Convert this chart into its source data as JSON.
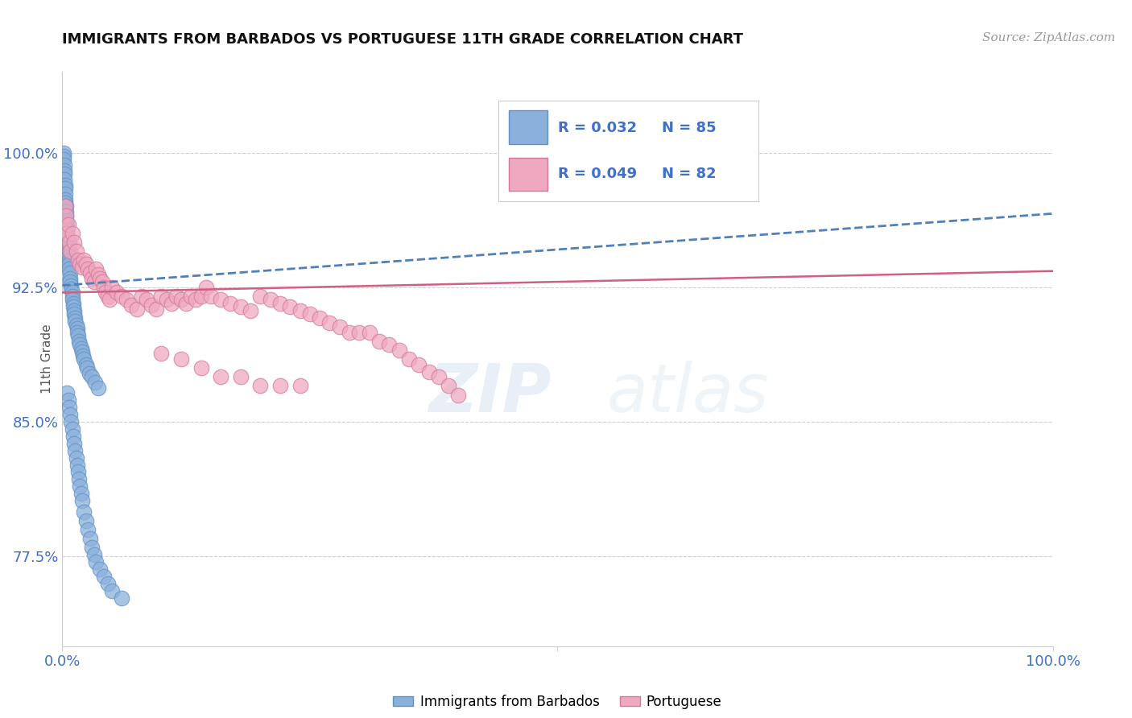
{
  "title": "IMMIGRANTS FROM BARBADOS VS PORTUGUESE 11TH GRADE CORRELATION CHART",
  "source": "Source: ZipAtlas.com",
  "ylabel": "11th Grade",
  "y_tick_labels": [
    "77.5%",
    "85.0%",
    "92.5%",
    "100.0%"
  ],
  "y_tick_values": [
    0.775,
    0.85,
    0.925,
    1.0
  ],
  "x_range": [
    0.0,
    1.0
  ],
  "y_range": [
    0.725,
    1.045
  ],
  "legend_r_blue": "R = 0.032",
  "legend_n_blue": "N = 85",
  "legend_r_pink": "R = 0.049",
  "legend_n_pink": "N = 82",
  "blue_color": "#8ab0dc",
  "pink_color": "#f0a8c0",
  "blue_edge": "#6090c0",
  "pink_edge": "#d07898",
  "trend_blue_color": "#5080b8",
  "trend_pink_color": "#d06080",
  "grid_color": "#d0d0d0",
  "background_color": "#ffffff",
  "blue_scatter_x": [
    0.001,
    0.001,
    0.001,
    0.002,
    0.002,
    0.002,
    0.002,
    0.003,
    0.003,
    0.003,
    0.003,
    0.003,
    0.004,
    0.004,
    0.004,
    0.004,
    0.005,
    0.005,
    0.005,
    0.005,
    0.006,
    0.006,
    0.006,
    0.006,
    0.007,
    0.007,
    0.007,
    0.008,
    0.008,
    0.008,
    0.009,
    0.009,
    0.01,
    0.01,
    0.01,
    0.011,
    0.011,
    0.012,
    0.012,
    0.013,
    0.013,
    0.014,
    0.015,
    0.015,
    0.016,
    0.017,
    0.018,
    0.019,
    0.02,
    0.021,
    0.022,
    0.024,
    0.025,
    0.027,
    0.03,
    0.033,
    0.036,
    0.005,
    0.006,
    0.007,
    0.008,
    0.009,
    0.01,
    0.011,
    0.012,
    0.013,
    0.014,
    0.015,
    0.016,
    0.017,
    0.018,
    0.019,
    0.02,
    0.022,
    0.024,
    0.026,
    0.028,
    0.03,
    0.032,
    0.034,
    0.038,
    0.042,
    0.046,
    0.05,
    0.06
  ],
  "blue_scatter_y": [
    1.0,
    0.998,
    0.996,
    0.993,
    0.99,
    0.988,
    0.985,
    0.982,
    0.98,
    0.977,
    0.974,
    0.972,
    0.97,
    0.967,
    0.965,
    0.962,
    0.96,
    0.957,
    0.955,
    0.952,
    0.95,
    0.947,
    0.944,
    0.942,
    0.94,
    0.938,
    0.935,
    0.933,
    0.93,
    0.928,
    0.926,
    0.924,
    0.922,
    0.92,
    0.918,
    0.916,
    0.914,
    0.912,
    0.91,
    0.908,
    0.906,
    0.904,
    0.902,
    0.9,
    0.898,
    0.895,
    0.893,
    0.891,
    0.889,
    0.887,
    0.885,
    0.882,
    0.88,
    0.877,
    0.875,
    0.872,
    0.869,
    0.866,
    0.862,
    0.858,
    0.854,
    0.85,
    0.846,
    0.842,
    0.838,
    0.834,
    0.83,
    0.826,
    0.822,
    0.818,
    0.814,
    0.81,
    0.806,
    0.8,
    0.795,
    0.79,
    0.785,
    0.78,
    0.776,
    0.772,
    0.768,
    0.764,
    0.76,
    0.756,
    0.752
  ],
  "pink_scatter_x": [
    0.001,
    0.002,
    0.003,
    0.004,
    0.005,
    0.006,
    0.007,
    0.008,
    0.01,
    0.012,
    0.014,
    0.016,
    0.018,
    0.02,
    0.022,
    0.024,
    0.026,
    0.028,
    0.03,
    0.032,
    0.034,
    0.036,
    0.038,
    0.04,
    0.042,
    0.044,
    0.046,
    0.048,
    0.05,
    0.055,
    0.06,
    0.065,
    0.07,
    0.075,
    0.08,
    0.085,
    0.09,
    0.095,
    0.1,
    0.105,
    0.11,
    0.115,
    0.12,
    0.125,
    0.13,
    0.135,
    0.14,
    0.145,
    0.15,
    0.16,
    0.17,
    0.18,
    0.19,
    0.2,
    0.21,
    0.22,
    0.23,
    0.24,
    0.25,
    0.26,
    0.27,
    0.28,
    0.29,
    0.3,
    0.31,
    0.32,
    0.33,
    0.34,
    0.35,
    0.36,
    0.37,
    0.38,
    0.39,
    0.4,
    0.2,
    0.22,
    0.24,
    0.18,
    0.16,
    0.14,
    0.12,
    0.1
  ],
  "pink_scatter_y": [
    0.96,
    0.955,
    0.97,
    0.965,
    0.955,
    0.96,
    0.95,
    0.945,
    0.955,
    0.95,
    0.945,
    0.94,
    0.938,
    0.936,
    0.94,
    0.938,
    0.935,
    0.933,
    0.93,
    0.928,
    0.935,
    0.932,
    0.93,
    0.928,
    0.925,
    0.922,
    0.92,
    0.918,
    0.925,
    0.922,
    0.92,
    0.918,
    0.915,
    0.913,
    0.92,
    0.918,
    0.915,
    0.913,
    0.92,
    0.918,
    0.916,
    0.92,
    0.918,
    0.916,
    0.92,
    0.918,
    0.92,
    0.925,
    0.92,
    0.918,
    0.916,
    0.914,
    0.912,
    0.92,
    0.918,
    0.916,
    0.914,
    0.912,
    0.91,
    0.908,
    0.905,
    0.903,
    0.9,
    0.9,
    0.9,
    0.895,
    0.893,
    0.89,
    0.885,
    0.882,
    0.878,
    0.875,
    0.87,
    0.865,
    0.87,
    0.87,
    0.87,
    0.875,
    0.875,
    0.88,
    0.885,
    0.888
  ]
}
